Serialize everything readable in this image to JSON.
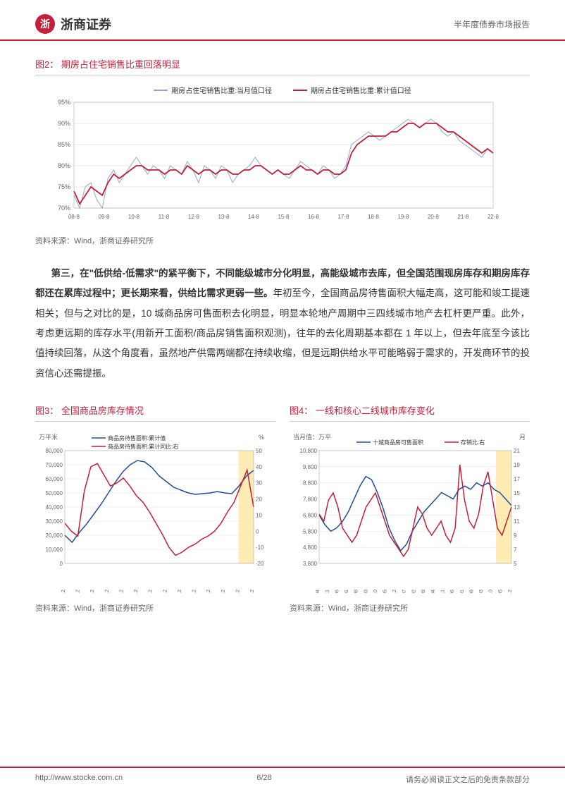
{
  "header": {
    "company": "浙商证券",
    "report_type": "半年度债券市场报告"
  },
  "fig2": {
    "title": "图2： 期房占住宅销售比重回落明显",
    "legend": [
      {
        "label": "期房占住宅销售比重:当月值口径",
        "color": "#8fa8d8"
      },
      {
        "label": "期房占住宅销售比重:累计值口径",
        "color": "#c41e3a"
      }
    ],
    "ylabels": [
      "70%",
      "75%",
      "80%",
      "85%",
      "90%",
      "95%"
    ],
    "ylim": [
      70,
      95
    ],
    "xlabels": [
      "08-8",
      "09-8",
      "10-8",
      "11-8",
      "12-8",
      "13-8",
      "14-8",
      "15-8",
      "16-8",
      "17-8",
      "18-8",
      "19-8",
      "20-8",
      "21-8",
      "22-8"
    ],
    "series_monthly": [
      73,
      70,
      75,
      76,
      72,
      70,
      77,
      79,
      76,
      78,
      80,
      82,
      80,
      78,
      80,
      79,
      77,
      80,
      79,
      78,
      81,
      79,
      76,
      80,
      79,
      77,
      80,
      79,
      76,
      78,
      79,
      80,
      82,
      80,
      79,
      78,
      79,
      78,
      77,
      79,
      81,
      80,
      79,
      78,
      80,
      79,
      77,
      78,
      80,
      85,
      86,
      87,
      88,
      87,
      86,
      87,
      88,
      89,
      90,
      91,
      90,
      89,
      90,
      91,
      90,
      88,
      87,
      88,
      86,
      85,
      84,
      83,
      82,
      84,
      83
    ],
    "series_cumulative": [
      74,
      71,
      73,
      75,
      74,
      73,
      76,
      78,
      77,
      78,
      79,
      80,
      80,
      79,
      79,
      79,
      78,
      79,
      79,
      78,
      80,
      79,
      78,
      79,
      79,
      78,
      79,
      79,
      78,
      78,
      79,
      79,
      80,
      80,
      79,
      78,
      79,
      78,
      78,
      79,
      80,
      79,
      79,
      78,
      79,
      79,
      78,
      78,
      79,
      83,
      85,
      86,
      87,
      87,
      87,
      87,
      88,
      88,
      89,
      90,
      90,
      89,
      90,
      90,
      90,
      89,
      88,
      88,
      87,
      86,
      85,
      84,
      83,
      84,
      83
    ],
    "source": "资料来源：Wind，浙商证券研究所",
    "bg_color": "#ffffff",
    "grid_color": "#d0d0d0"
  },
  "paragraph": {
    "bold1": "第三，在\"低供给-低需求\"的紧平衡下，不同能级城市分化明显，高能级城市去库，但全国范围现房库存和期房库存都还在累库过程中；更长期来看，供给比需求更弱一些。",
    "rest": "年初至今，全国商品房待售面积大幅走高，这可能和竣工提速相关；但与之对比的是，10 城商品房可售面积去化明显，明显本轮地产周期中三四线城市地产去杠杆更严重。此外，考虑更远期的库存水平(用新开工面积/商品房销售面积观测)，往年的去化周期基本都在 1 年以上，但去年底至今该比值持续回落，从这个角度看，虽然地产供需两端都在持续收缩，但是远期供给水平可能略弱于需求的，开发商环节的投资信心还需提振。"
  },
  "fig3": {
    "title": "图3： 全国商品房库存情况",
    "y1_unit": "万平米",
    "y2_unit": "%",
    "legend": [
      {
        "label": "商品房待售面积:累计值",
        "color": "#1f4e9c"
      },
      {
        "label": "商品房待售面积:累计同比:右",
        "color": "#c41e3a"
      }
    ],
    "y1labels": [
      "0",
      "10,000",
      "20,000",
      "30,000",
      "40,000",
      "50,000",
      "60,000",
      "70,000",
      "80,000"
    ],
    "y1lim": [
      0,
      80000
    ],
    "y2labels": [
      "-20",
      "-10",
      "0",
      "10",
      "20",
      "30",
      "40",
      "50"
    ],
    "y2lim": [
      -20,
      50
    ],
    "xlabels": [
      "09-12",
      "10-12",
      "11-12",
      "12-12",
      "13-12",
      "14-12",
      "15-12",
      "16-12",
      "17-12",
      "18-12",
      "19-12",
      "20-12",
      "21-12",
      "22-12"
    ],
    "series_area": [
      20000,
      15000,
      22000,
      28000,
      35000,
      42000,
      50000,
      58000,
      65000,
      70000,
      73000,
      72000,
      68000,
      62000,
      58000,
      54000,
      52000,
      50000,
      49000,
      49500,
      50000,
      51000,
      50000,
      49500,
      55000,
      62000,
      66000
    ],
    "series_yoy": [
      5,
      0,
      -3,
      25,
      40,
      42,
      35,
      28,
      30,
      33,
      28,
      22,
      18,
      12,
      5,
      -2,
      -10,
      -15,
      -13,
      -10,
      -8,
      -5,
      -3,
      0,
      5,
      12,
      18,
      28,
      38,
      15
    ],
    "source": "资料来源：Wind，浙商证券研究所",
    "highlight_start": 0.92
  },
  "fig4": {
    "title": "图4： 一线和核心二线城市库存变化",
    "y1_unit": "当月值：万平",
    "y2_unit": "月",
    "legend": [
      {
        "label": "十城商品房可售面积",
        "color": "#1f4e9c"
      },
      {
        "label": "存销比:右",
        "color": "#c41e3a"
      }
    ],
    "y1labels": [
      "3,800",
      "4,800",
      "5,800",
      "6,800",
      "7,800",
      "8,800",
      "9,800",
      "10,800"
    ],
    "y1lim": [
      3800,
      10800
    ],
    "y2labels": [
      "5",
      "7",
      "9",
      "11",
      "13",
      "15",
      "17",
      "19",
      "21"
    ],
    "y2lim": [
      5,
      21
    ],
    "xlabels": [
      "11-04",
      "11-11",
      "12-06",
      "13-01",
      "13-08",
      "14-03",
      "14-10",
      "15-05",
      "15-12",
      "16-07",
      "17-02",
      "17-09",
      "18-04",
      "18-11",
      "19-06",
      "20-01",
      "20-08",
      "21-03",
      "21-10",
      "22-05",
      "22-12"
    ],
    "series_area": [
      6800,
      6200,
      5800,
      6000,
      6400,
      7000,
      7800,
      8600,
      9200,
      9000,
      8200,
      7200,
      6000,
      5200,
      4600,
      5000,
      5800,
      6400,
      7000,
      7400,
      7800,
      8200,
      8000,
      7800,
      8400,
      8600,
      8400,
      8800,
      8600,
      8800,
      8400,
      8200,
      7800,
      7400
    ],
    "series_ratio": [
      12,
      11,
      14,
      15,
      13,
      10,
      9,
      8,
      9,
      11,
      13,
      14,
      15,
      13,
      11,
      9,
      8,
      7,
      6,
      7,
      10,
      13,
      12,
      10,
      9,
      10,
      11,
      9,
      8,
      10,
      19,
      14,
      11,
      10,
      12,
      16,
      18,
      14,
      10,
      9,
      11,
      13
    ],
    "source": "资料来源：Wind，浙商证券研究所",
    "highlight_start": 0.92
  },
  "footer": {
    "url": "http://www.stocke.com.cn",
    "page": "6/28",
    "disclaimer": "请务必阅读正文之后的免责条款部分"
  }
}
